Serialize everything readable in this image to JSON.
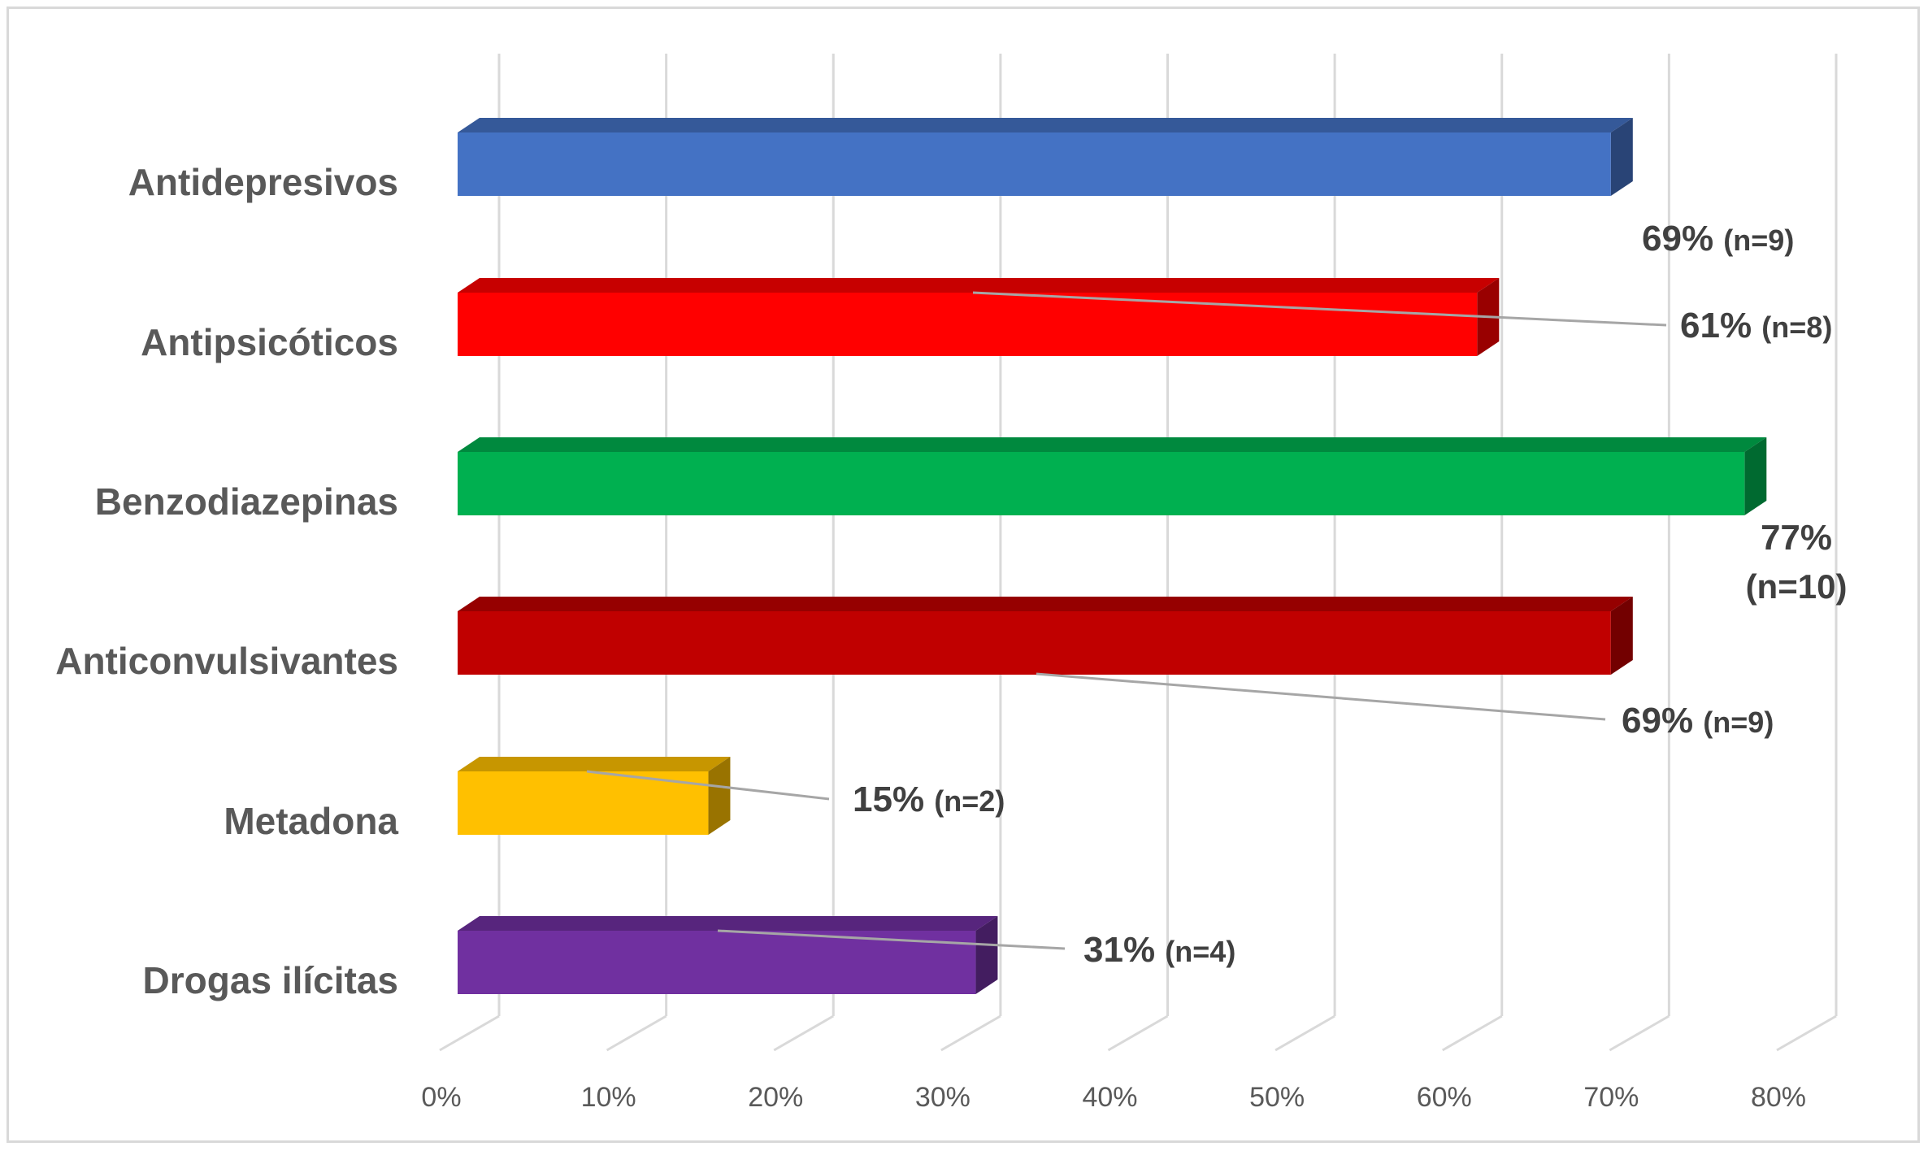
{
  "chart_data": {
    "type": "bar",
    "orientation": "horizontal",
    "three_d": true,
    "categories": [
      "Antidepresivos",
      "Antipsicóticos",
      "Benzodiazepinas",
      "Anticonvulsivantes",
      "Metadona",
      "Drogas ilícitas"
    ],
    "values": [
      69,
      61,
      77,
      69,
      15,
      31
    ],
    "data_labels": [
      {
        "pct": "69%",
        "n": "(n=9)"
      },
      {
        "pct": "61%",
        "n": "(n=8)"
      },
      {
        "pct": "77%",
        "n": "(n=10)"
      },
      {
        "pct": "69%",
        "n": "(n=9)"
      },
      {
        "pct": "15%",
        "n": "(n=2)"
      },
      {
        "pct": "31%",
        "n": "(n=4)"
      }
    ],
    "colors": [
      "#4472c4",
      "#ff0000",
      "#00b050",
      "#c00000",
      "#ffc000",
      "#7030a0"
    ],
    "xlim": [
      0,
      80
    ],
    "x_ticks": [
      "0%",
      "10%",
      "20%",
      "30%",
      "40%",
      "50%",
      "60%",
      "70%",
      "80%"
    ],
    "grid": true,
    "legend": "none"
  }
}
